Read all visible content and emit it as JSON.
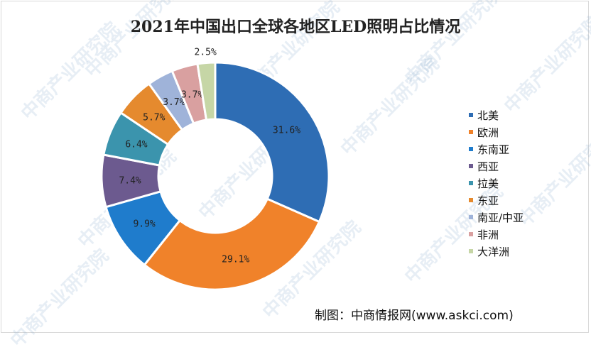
{
  "title": "2021年中国出口全球各地区LED照明占比情况",
  "source": "制图：中商情报网(www.askci.com)",
  "watermark_text": "中商产业研究院",
  "chart_data": {
    "type": "pie",
    "style": "donut",
    "legend_position": "right",
    "label_format": "{value}%",
    "series": [
      {
        "name": "北美",
        "value": 31.6,
        "color": "#2e6db4"
      },
      {
        "name": "欧洲",
        "value": 29.1,
        "color": "#f0822a"
      },
      {
        "name": "东南亚",
        "value": 9.9,
        "color": "#1f7ccc"
      },
      {
        "name": "西亚",
        "value": 7.4,
        "color": "#6c5a8f"
      },
      {
        "name": "拉美",
        "value": 6.4,
        "color": "#3b94ad"
      },
      {
        "name": "东亚",
        "value": 5.7,
        "color": "#e58a2e"
      },
      {
        "name": "南亚/中亚",
        "value": 3.7,
        "color": "#9fb3d9"
      },
      {
        "name": "非洲",
        "value": 3.7,
        "color": "#d9a0a0"
      },
      {
        "name": "大洋洲",
        "value": 2.5,
        "color": "#c6d6a6"
      }
    ]
  }
}
